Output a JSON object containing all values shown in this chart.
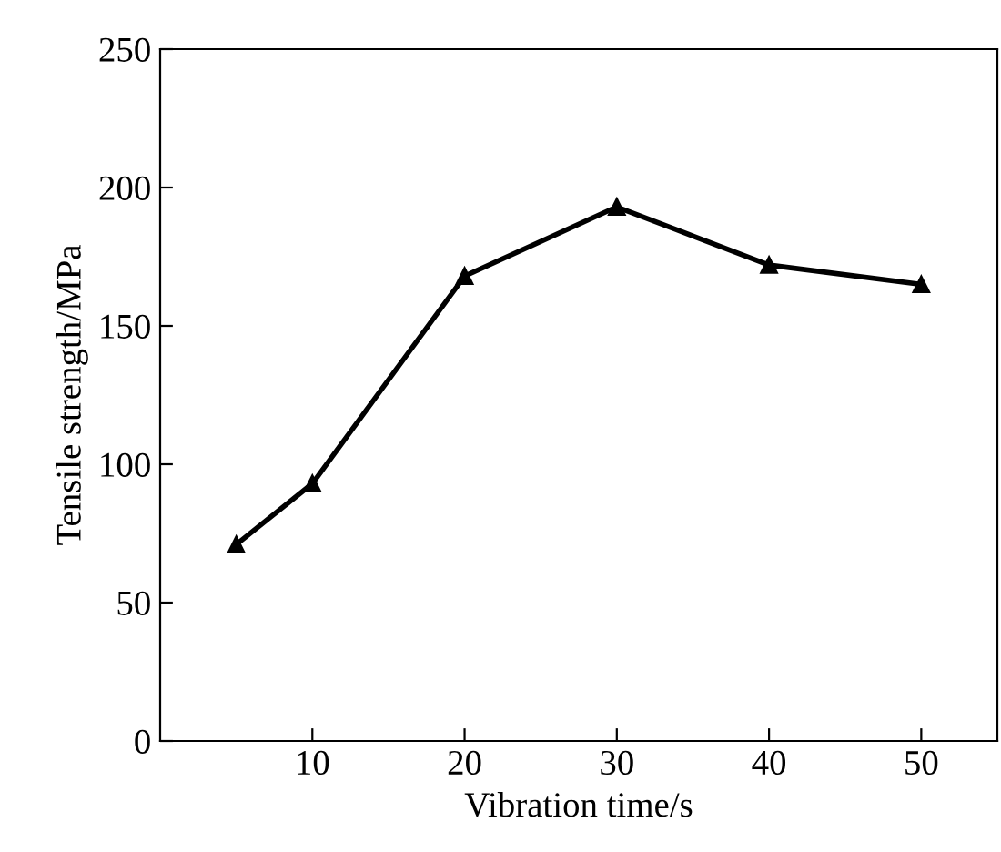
{
  "chart_data": {
    "type": "line",
    "xlabel": "Vibration time/s",
    "ylabel": "Tensile strength/MPa",
    "x": [
      5,
      10,
      20,
      30,
      40,
      50
    ],
    "series": [
      {
        "color": "#000000",
        "values": [
          71,
          93,
          168,
          193,
          172,
          165
        ]
      }
    ],
    "xlim": [
      0,
      55
    ],
    "ylim": [
      0,
      250
    ],
    "xticks": [
      10,
      20,
      30,
      40,
      50
    ],
    "yticks": [
      0,
      50,
      100,
      150,
      200,
      250
    ],
    "marker": "triangle",
    "line_style": "solid",
    "grid": false,
    "legend": false
  }
}
